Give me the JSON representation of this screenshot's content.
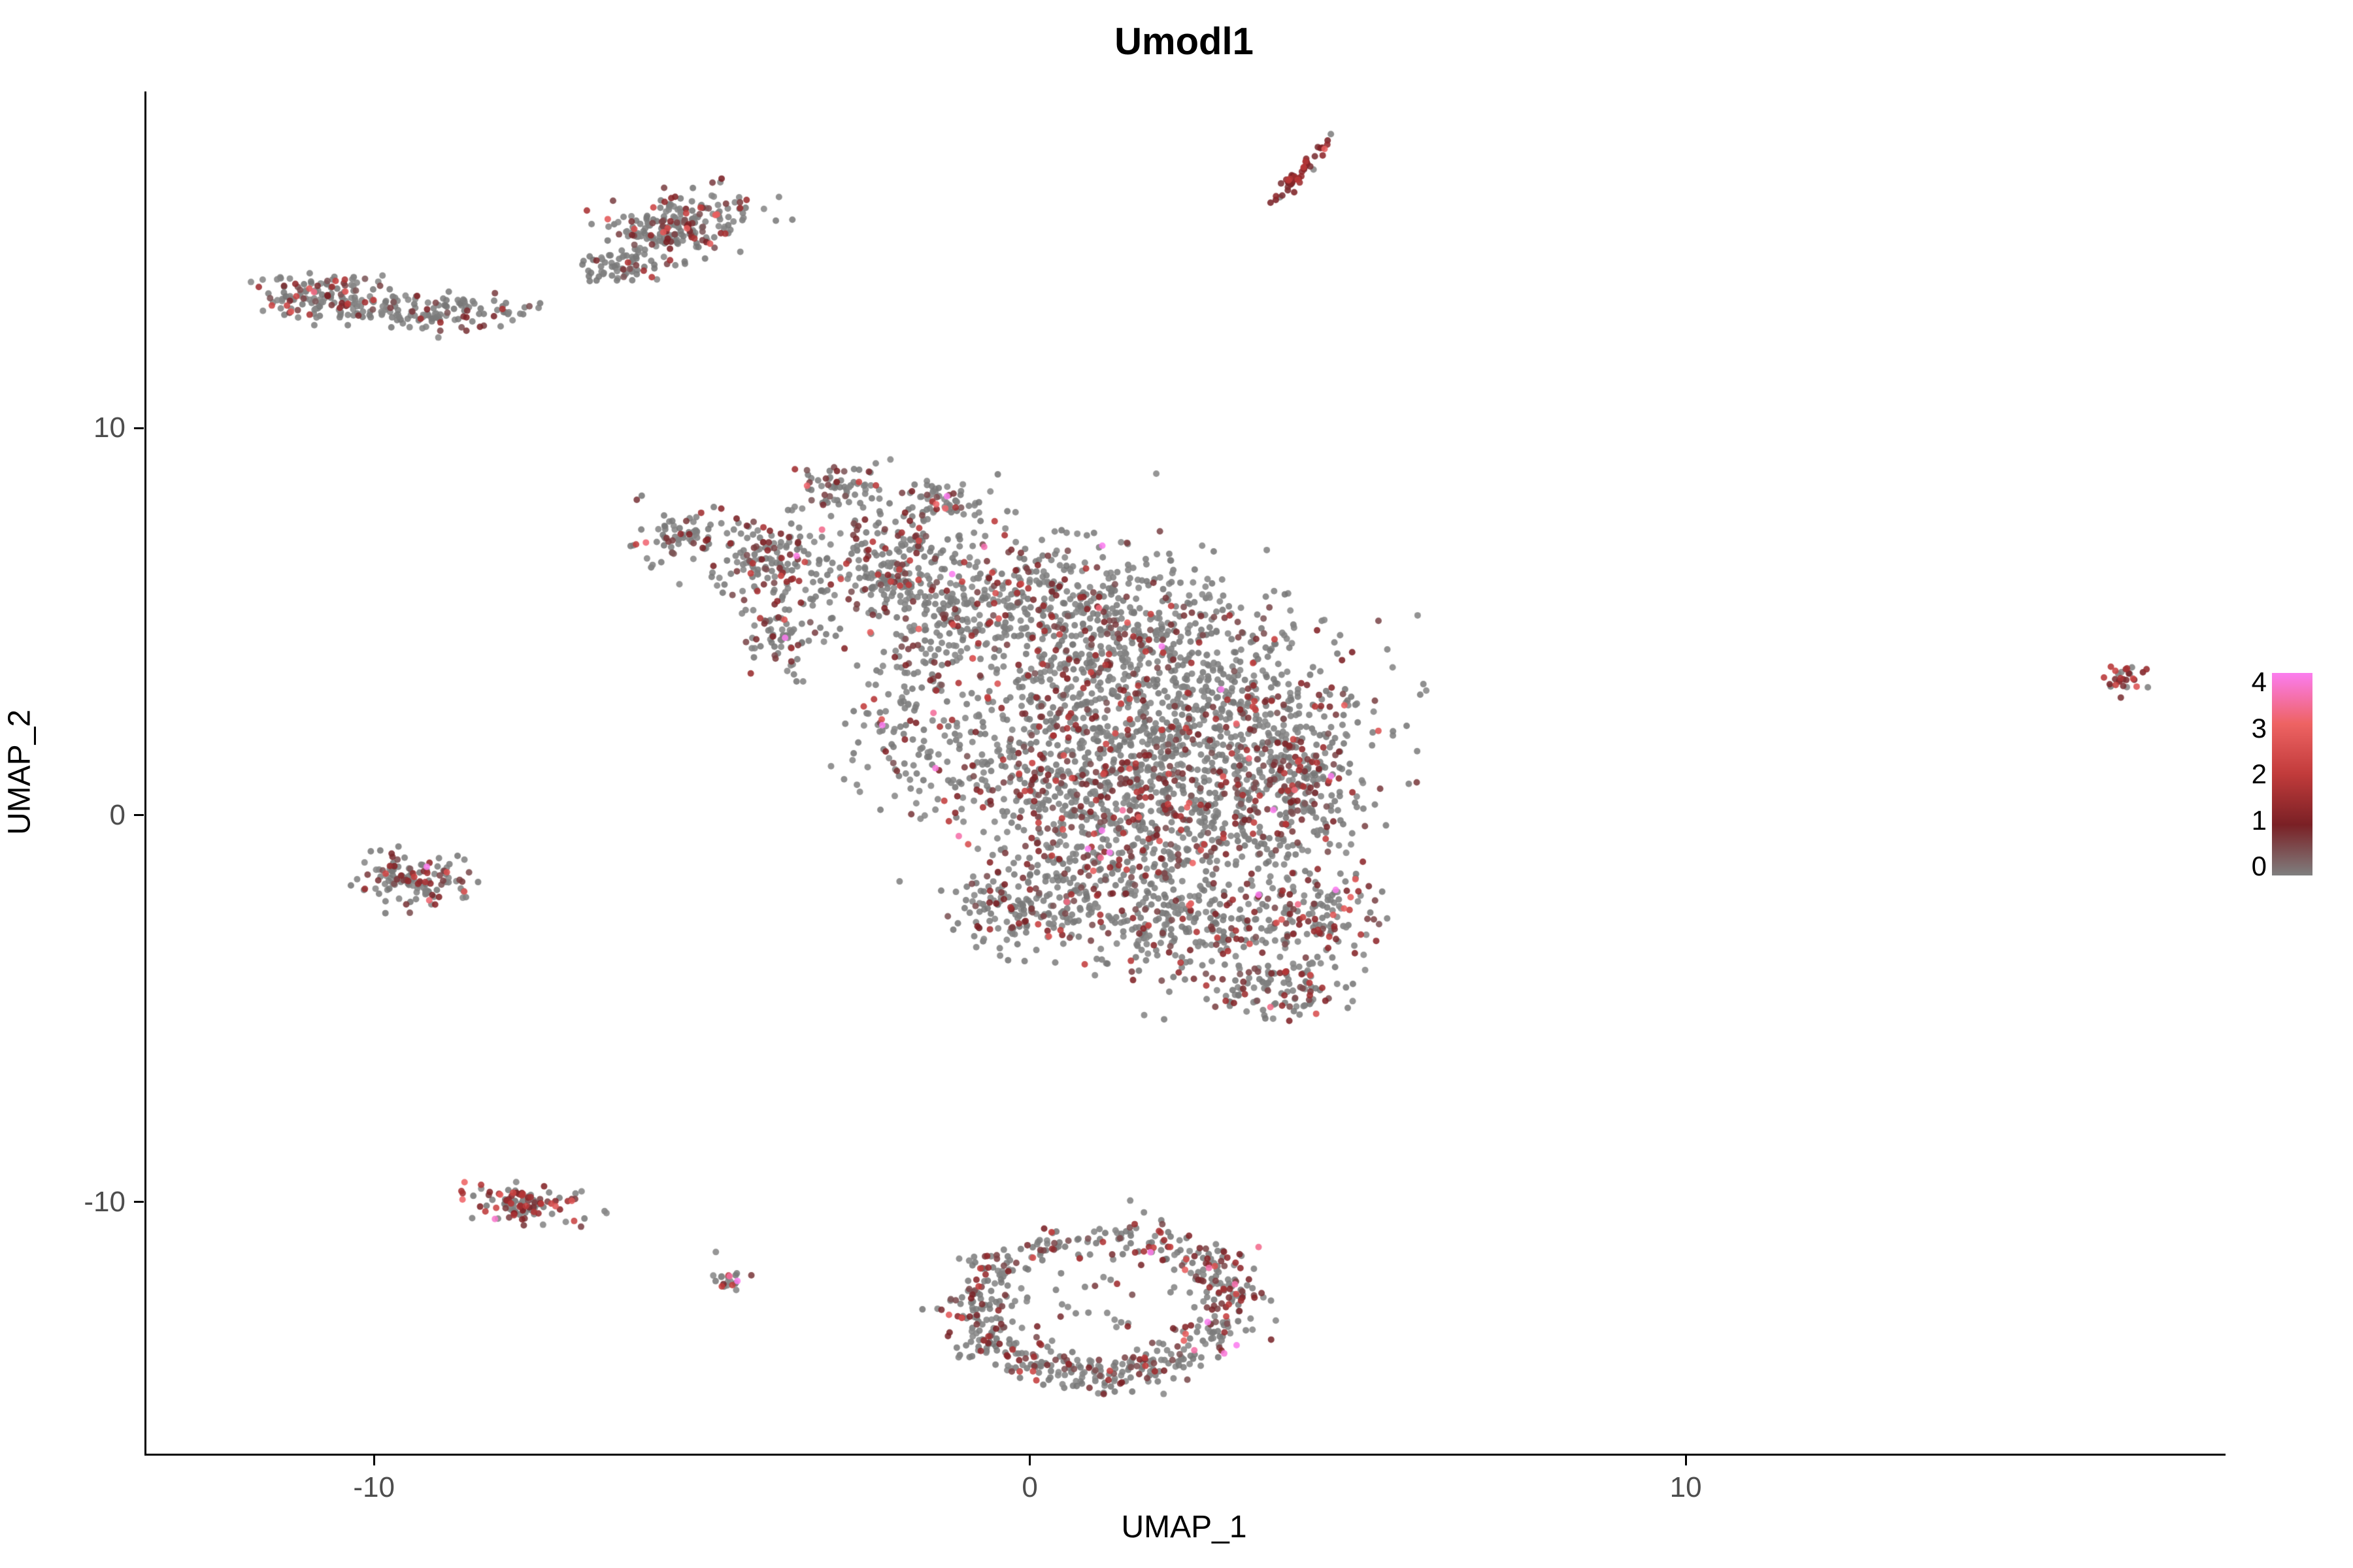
{
  "chart_data": {
    "type": "scatter",
    "title": "Umodl1",
    "xlabel": "UMAP_1",
    "ylabel": "UMAP_2",
    "xlim": [
      -13.5,
      18.2
    ],
    "ylim": [
      -16.5,
      18.7
    ],
    "xticks": [
      -10,
      0,
      10
    ],
    "yticks": [
      -10,
      0,
      10
    ],
    "grid": false,
    "legend_position": "right",
    "point_radius_px": 5,
    "point_alpha": 0.88,
    "zero_color": "#7F7F7F",
    "colorbar": {
      "ticks": [
        4,
        3,
        2,
        1,
        0
      ],
      "min": 0,
      "max": 4,
      "stops_bottom_to_top": [
        "#7F7F7F",
        "#7A2025",
        "#C13B3B",
        "#EE6363",
        "#FB7DEF"
      ]
    },
    "clusters": [
      {
        "name": "top-left-blob-core",
        "cx": -10.7,
        "cy": 13.4,
        "sx": 0.55,
        "sy": 0.3,
        "n": 150,
        "rot": -8,
        "p": 0.3,
        "base": 0.4,
        "scale": 0.7
      },
      {
        "name": "top-left-blob-tail",
        "cx": -9.05,
        "cy": 13.0,
        "sx": 0.6,
        "sy": 0.22,
        "n": 110,
        "rot": 0,
        "p": 0.12,
        "base": 0.4,
        "scale": 0.6
      },
      {
        "name": "top-left-strays",
        "cx": -7.9,
        "cy": 13.05,
        "sx": 0.15,
        "sy": 0.1,
        "n": 8,
        "rot": 0,
        "p": 0.1,
        "base": 0.4,
        "scale": 0.5
      },
      {
        "name": "upper-blob",
        "cx": -5.45,
        "cy": 15.2,
        "sx": 0.6,
        "sy": 0.4,
        "n": 230,
        "rot": 30,
        "p": 0.3,
        "base": 0.4,
        "scale": 0.8
      },
      {
        "name": "upper-blob-tail",
        "cx": -6.35,
        "cy": 14.2,
        "sx": 0.28,
        "sy": 0.3,
        "n": 50,
        "rot": 30,
        "p": 0.2,
        "base": 0.4,
        "scale": 0.6
      },
      {
        "name": "top-streak",
        "cx": 4.08,
        "cy": 16.6,
        "sx": 0.45,
        "sy": 0.06,
        "n": 55,
        "rot": 63,
        "p": 0.9,
        "base": 0.8,
        "scale": 0.5
      },
      {
        "name": "main-left-arm",
        "cx": -5.35,
        "cy": 7.1,
        "sx": 0.3,
        "sy": 0.45,
        "n": 70,
        "rot": 0,
        "p": 0.35,
        "base": 0.4,
        "scale": 0.7
      },
      {
        "name": "main-left-lobe",
        "cx": -3.95,
        "cy": 6.5,
        "sx": 0.45,
        "sy": 0.6,
        "n": 160,
        "rot": 0,
        "p": 0.3,
        "base": 0.4,
        "scale": 0.7
      },
      {
        "name": "main-left-spur",
        "cx": -3.8,
        "cy": 4.6,
        "sx": 0.28,
        "sy": 0.45,
        "n": 70,
        "rot": 0,
        "p": 0.35,
        "base": 0.4,
        "scale": 0.8
      },
      {
        "name": "main-top-knob-a",
        "cx": -2.95,
        "cy": 8.5,
        "sx": 0.3,
        "sy": 0.32,
        "n": 60,
        "rot": 0,
        "p": 0.3,
        "base": 0.4,
        "scale": 0.7
      },
      {
        "name": "main-top-knob-b",
        "cx": -1.35,
        "cy": 8.1,
        "sx": 0.28,
        "sy": 0.3,
        "n": 55,
        "rot": 0,
        "p": 0.3,
        "base": 0.4,
        "scale": 0.7
      },
      {
        "name": "main-neck",
        "cx": -2.3,
        "cy": 6.5,
        "sx": 0.5,
        "sy": 0.85,
        "n": 150,
        "rot": 0,
        "p": 0.22,
        "base": 0.4,
        "scale": 0.7
      },
      {
        "name": "main-left-sparse",
        "cx": -1.9,
        "cy": 2.5,
        "sx": 0.55,
        "sy": 1.3,
        "n": 110,
        "rot": 0,
        "p": 0.25,
        "base": 0.4,
        "scale": 0.7
      },
      {
        "name": "main-upper",
        "cx": -0.8,
        "cy": 5.7,
        "sx": 0.95,
        "sy": 0.95,
        "n": 350,
        "rot": 0,
        "p": 0.22,
        "base": 0.4,
        "scale": 0.7
      },
      {
        "name": "main-core-a",
        "cx": 1.05,
        "cy": 4.6,
        "sx": 1.25,
        "sy": 1.05,
        "n": 550,
        "rot": 0,
        "p": 0.22,
        "base": 0.4,
        "scale": 0.7
      },
      {
        "name": "main-core-b",
        "cx": 2.7,
        "cy": 2.6,
        "sx": 1.25,
        "sy": 1.15,
        "n": 600,
        "rot": 0,
        "p": 0.22,
        "base": 0.4,
        "scale": 0.7
      },
      {
        "name": "main-core-c",
        "cx": 0.6,
        "cy": 1.4,
        "sx": 1.15,
        "sy": 1.05,
        "n": 500,
        "rot": 0,
        "p": 0.25,
        "base": 0.4,
        "scale": 0.7
      },
      {
        "name": "main-core-d",
        "cx": 2.0,
        "cy": -0.35,
        "sx": 1.15,
        "sy": 0.95,
        "n": 450,
        "rot": 0,
        "p": 0.25,
        "base": 0.4,
        "scale": 0.7
      },
      {
        "name": "main-right-edge",
        "cx": 3.95,
        "cy": 0.6,
        "sx": 0.55,
        "sy": 0.85,
        "n": 200,
        "rot": 0,
        "p": 0.32,
        "base": 0.4,
        "scale": 0.8
      },
      {
        "name": "main-lower-a",
        "cx": 0.6,
        "cy": -2.1,
        "sx": 0.75,
        "sy": 0.75,
        "n": 220,
        "rot": 0,
        "p": 0.25,
        "base": 0.4,
        "scale": 0.7
      },
      {
        "name": "main-lower-b",
        "cx": 2.7,
        "cy": -2.9,
        "sx": 0.85,
        "sy": 0.75,
        "n": 250,
        "rot": 0,
        "p": 0.25,
        "base": 0.4,
        "scale": 0.7
      },
      {
        "name": "main-lower-right",
        "cx": 4.3,
        "cy": -2.5,
        "sx": 0.48,
        "sy": 0.6,
        "n": 130,
        "rot": 0,
        "p": 0.4,
        "base": 0.5,
        "scale": 0.8
      },
      {
        "name": "main-bottom-tip",
        "cx": 3.7,
        "cy": -4.5,
        "sx": 0.55,
        "sy": 0.38,
        "n": 110,
        "rot": 10,
        "p": 0.35,
        "base": 0.4,
        "scale": 0.8
      },
      {
        "name": "main-left-protrusion",
        "cx": -0.45,
        "cy": -2.5,
        "sx": 0.38,
        "sy": 0.55,
        "n": 70,
        "rot": 0,
        "p": 0.2,
        "base": 0.4,
        "scale": 0.6
      },
      {
        "name": "left-small-cluster",
        "cx": -9.35,
        "cy": -1.65,
        "sx": 0.4,
        "sy": 0.32,
        "n": 130,
        "rot": -15,
        "p": 0.35,
        "base": 0.4,
        "scale": 0.8
      },
      {
        "name": "lower-left-cluster",
        "cx": -7.65,
        "cy": -10.1,
        "sx": 0.45,
        "sy": 0.24,
        "n": 115,
        "rot": -10,
        "p": 0.5,
        "base": 0.6,
        "scale": 0.8
      },
      {
        "name": "tiny-cluster",
        "cx": -4.65,
        "cy": -12.0,
        "sx": 0.13,
        "sy": 0.16,
        "n": 22,
        "rot": 0,
        "p": 0.6,
        "base": 0.7,
        "scale": 0.7
      },
      {
        "name": "ring-top",
        "cx": 1.5,
        "cy": -10.9,
        "sx": 0.38,
        "sy": 0.28,
        "n": 45,
        "rot": 0,
        "p": 0.3,
        "base": 0.4,
        "scale": 0.7
      },
      {
        "name": "ring-ne",
        "cx": 2.55,
        "cy": -11.5,
        "sx": 0.4,
        "sy": 0.3,
        "n": 60,
        "rot": -30,
        "p": 0.5,
        "base": 0.5,
        "scale": 0.8
      },
      {
        "name": "ring-e",
        "cx": 3.0,
        "cy": -12.4,
        "sx": 0.32,
        "sy": 0.32,
        "n": 55,
        "rot": 0,
        "p": 0.45,
        "base": 0.5,
        "scale": 0.8
      },
      {
        "name": "ring-se",
        "cx": 2.75,
        "cy": -13.4,
        "sx": 0.35,
        "sy": 0.28,
        "n": 50,
        "rot": 20,
        "p": 0.3,
        "base": 0.4,
        "scale": 0.7
      },
      {
        "name": "ring-s1",
        "cx": 1.95,
        "cy": -14.1,
        "sx": 0.38,
        "sy": 0.26,
        "n": 55,
        "rot": 15,
        "p": 0.3,
        "base": 0.4,
        "scale": 0.7
      },
      {
        "name": "ring-s2",
        "cx": 1.0,
        "cy": -14.45,
        "sx": 0.4,
        "sy": 0.24,
        "n": 60,
        "rot": 0,
        "p": 0.3,
        "base": 0.4,
        "scale": 0.7
      },
      {
        "name": "ring-sw",
        "cx": 0.05,
        "cy": -14.15,
        "sx": 0.38,
        "sy": 0.26,
        "n": 65,
        "rot": -15,
        "p": 0.4,
        "base": 0.4,
        "scale": 0.8
      },
      {
        "name": "ring-w1",
        "cx": -0.65,
        "cy": -13.5,
        "sx": 0.3,
        "sy": 0.3,
        "n": 55,
        "rot": 0,
        "p": 0.3,
        "base": 0.4,
        "scale": 0.7
      },
      {
        "name": "ring-w2",
        "cx": -0.95,
        "cy": -12.6,
        "sx": 0.28,
        "sy": 0.32,
        "n": 50,
        "rot": 0,
        "p": 0.3,
        "base": 0.4,
        "scale": 0.7
      },
      {
        "name": "ring-nw1",
        "cx": -0.6,
        "cy": -11.8,
        "sx": 0.3,
        "sy": 0.26,
        "n": 45,
        "rot": 0,
        "p": 0.25,
        "base": 0.4,
        "scale": 0.7
      },
      {
        "name": "ring-nw2",
        "cx": 0.3,
        "cy": -11.2,
        "sx": 0.35,
        "sy": 0.26,
        "n": 35,
        "rot": 0,
        "p": 0.25,
        "base": 0.4,
        "scale": 0.7
      },
      {
        "name": "ring-inner-sparse",
        "cx": 1.0,
        "cy": -12.6,
        "sx": 0.85,
        "sy": 0.6,
        "n": 30,
        "rot": 0,
        "p": 0.2,
        "base": 0.4,
        "scale": 0.6
      },
      {
        "name": "far-right-cluster",
        "cx": 16.7,
        "cy": 3.6,
        "sx": 0.18,
        "sy": 0.22,
        "n": 28,
        "rot": -20,
        "p": 0.75,
        "base": 0.8,
        "scale": 0.6
      }
    ]
  }
}
